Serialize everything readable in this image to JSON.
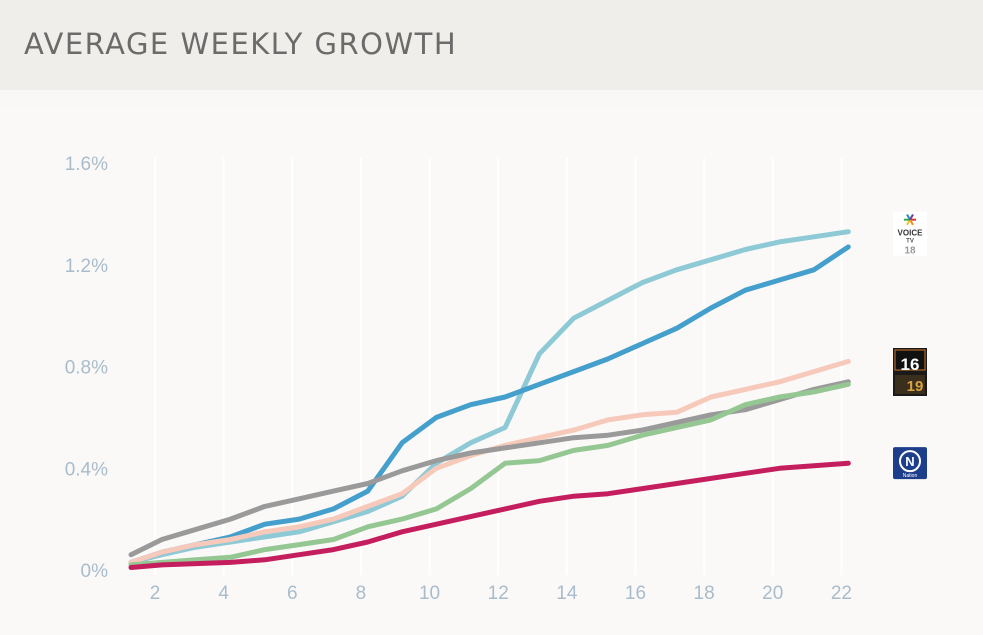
{
  "header": {
    "title": "AVERAGE WEEKLY GROWTH"
  },
  "chart_data": {
    "type": "line",
    "title": "AVERAGE WEEKLY GROWTH",
    "xlabel": "",
    "ylabel": "",
    "xlim": [
      1.3,
      23.3
    ],
    "ylim": [
      0,
      1.6
    ],
    "x_ticks": [
      2,
      4,
      6,
      8,
      10,
      12,
      14,
      16,
      18,
      20,
      22
    ],
    "y_ticks": [
      0,
      0.4,
      0.8,
      1.2,
      1.6
    ],
    "y_tick_labels": [
      "0%",
      "0.4%",
      "0.8%",
      "1.2%",
      "1.6%"
    ],
    "grid": true,
    "series": [
      {
        "color": "#8ec9d6",
        "x": [
          1.3,
          2.2,
          3.2,
          4.2,
          5.2,
          6.2,
          7.2,
          8.2,
          9.2,
          10.2,
          11.2,
          12.2,
          13.2,
          14.2,
          15.2,
          16.2,
          17.2,
          18.2,
          19.2,
          20.2,
          21.2,
          22.2
        ],
        "values": [
          0.03,
          0.06,
          0.09,
          0.11,
          0.13,
          0.15,
          0.19,
          0.23,
          0.29,
          0.42,
          0.5,
          0.56,
          0.85,
          0.99,
          1.06,
          1.13,
          1.18,
          1.22,
          1.26,
          1.29,
          1.31,
          1.33
        ]
      },
      {
        "color": "#459fcc",
        "x": [
          1.3,
          2.2,
          3.2,
          4.2,
          5.2,
          6.2,
          7.2,
          8.2,
          9.2,
          10.2,
          11.2,
          12.2,
          13.2,
          14.2,
          15.2,
          16.2,
          17.2,
          18.2,
          19.2,
          20.2,
          21.2,
          22.2
        ],
        "values": [
          0.03,
          0.07,
          0.1,
          0.13,
          0.18,
          0.2,
          0.24,
          0.31,
          0.5,
          0.6,
          0.65,
          0.68,
          0.73,
          0.78,
          0.83,
          0.89,
          0.95,
          1.03,
          1.1,
          1.14,
          1.18,
          1.27
        ]
      },
      {
        "color": "#f7c9ba",
        "x": [
          1.3,
          2.2,
          3.2,
          4.2,
          5.2,
          6.2,
          7.2,
          8.2,
          9.2,
          10.2,
          11.2,
          12.2,
          13.2,
          14.2,
          15.2,
          16.2,
          17.2,
          18.2,
          19.2,
          20.2,
          21.2,
          22.2
        ],
        "values": [
          0.03,
          0.07,
          0.1,
          0.12,
          0.15,
          0.17,
          0.2,
          0.25,
          0.3,
          0.4,
          0.45,
          0.49,
          0.52,
          0.55,
          0.59,
          0.61,
          0.62,
          0.68,
          0.71,
          0.74,
          0.78,
          0.82
        ]
      },
      {
        "color": "#9a9a9a",
        "x": [
          1.3,
          2.2,
          3.2,
          4.2,
          5.2,
          6.2,
          7.2,
          8.2,
          9.2,
          10.2,
          11.2,
          12.2,
          13.2,
          14.2,
          15.2,
          16.2,
          17.2,
          18.2,
          19.2,
          20.2,
          21.2,
          22.2
        ],
        "values": [
          0.06,
          0.12,
          0.16,
          0.2,
          0.25,
          0.28,
          0.31,
          0.34,
          0.39,
          0.43,
          0.46,
          0.48,
          0.5,
          0.52,
          0.53,
          0.55,
          0.58,
          0.61,
          0.63,
          0.67,
          0.71,
          0.74
        ]
      },
      {
        "color": "#95c793",
        "x": [
          1.3,
          2.2,
          3.2,
          4.2,
          5.2,
          6.2,
          7.2,
          8.2,
          9.2,
          10.2,
          11.2,
          12.2,
          13.2,
          14.2,
          15.2,
          16.2,
          17.2,
          18.2,
          19.2,
          20.2,
          21.2,
          22.2
        ],
        "values": [
          0.02,
          0.03,
          0.04,
          0.05,
          0.08,
          0.1,
          0.12,
          0.17,
          0.2,
          0.24,
          0.32,
          0.42,
          0.43,
          0.47,
          0.49,
          0.53,
          0.56,
          0.59,
          0.65,
          0.68,
          0.7,
          0.73
        ]
      },
      {
        "color": "#c41e5f",
        "x": [
          1.3,
          2.2,
          3.2,
          4.2,
          5.2,
          6.2,
          7.2,
          8.2,
          9.2,
          10.2,
          11.2,
          12.2,
          13.2,
          14.2,
          15.2,
          16.2,
          17.2,
          18.2,
          19.2,
          20.2,
          21.2,
          22.2
        ],
        "values": [
          0.01,
          0.02,
          0.025,
          0.03,
          0.04,
          0.06,
          0.08,
          0.11,
          0.15,
          0.18,
          0.21,
          0.24,
          0.27,
          0.29,
          0.3,
          0.32,
          0.34,
          0.36,
          0.38,
          0.4,
          0.41,
          0.42
        ]
      }
    ],
    "end_logos": [
      {
        "name": "voice-tv",
        "lines": [
          "VOICE",
          "TV",
          "18"
        ],
        "value": 1.33
      },
      {
        "name": "channel-16-19",
        "lines": [
          "16",
          "19"
        ],
        "value": 0.78
      },
      {
        "name": "nation",
        "lines": [
          "N",
          "Nation"
        ],
        "value": 0.42
      }
    ]
  },
  "colors": {
    "header_bg": "#efeeea",
    "panel_bg": "#faf9f7",
    "tick": "#a9bccc"
  }
}
